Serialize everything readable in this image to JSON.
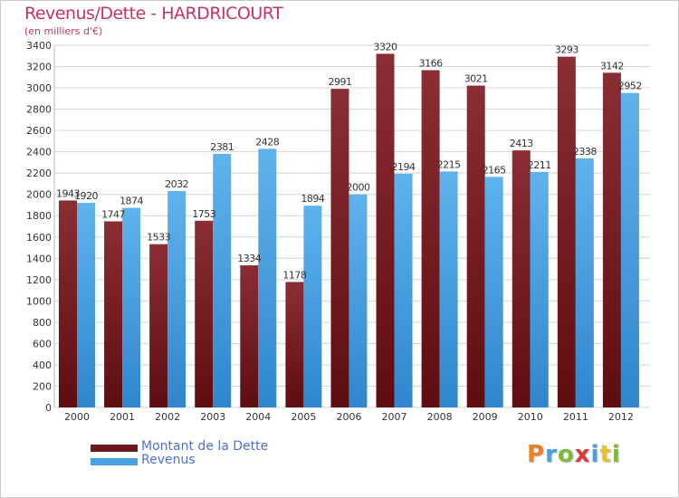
{
  "header": {
    "title": "Revenus/Dette - HARDRICOURT",
    "subtitle": "(en milliers d'€)"
  },
  "chart_data": {
    "type": "bar",
    "title": "Revenus/Dette - HARDRICOURT",
    "ylabel": "(en milliers d'€)",
    "xlabel": "",
    "ylim": [
      0,
      3400
    ],
    "yticks": [
      0,
      200,
      400,
      600,
      800,
      1000,
      1200,
      1400,
      1600,
      1800,
      2000,
      2200,
      2400,
      2600,
      2800,
      3000,
      3200,
      3400
    ],
    "grid": true,
    "categories": [
      "2000",
      "2001",
      "2002",
      "2003",
      "2004",
      "2005",
      "2006",
      "2007",
      "2008",
      "2009",
      "2010",
      "2011",
      "2012"
    ],
    "series": [
      {
        "name": "Montant de la Dette",
        "values": [
          1943,
          1747,
          1533,
          1753,
          1334,
          1178,
          2991,
          3320,
          3166,
          3021,
          2413,
          3293,
          3142
        ]
      },
      {
        "name": "Revenus",
        "values": [
          1920,
          1874,
          2032,
          2381,
          2428,
          1894,
          2000,
          2194,
          2215,
          2165,
          2211,
          2338,
          2952
        ]
      }
    ],
    "legend_position": "bottom-left"
  },
  "colors": {
    "dette_top": "#8a2e34",
    "dette_bottom": "#5e0d10",
    "revenus_top": "#5fb3ec",
    "revenus_bottom": "#2f86cd",
    "grid": "#d4d4d4",
    "axis_text": "#333333",
    "title": "#c8316a"
  },
  "legend": {
    "items": [
      {
        "label": "Montant de la Dette",
        "color": "#6b1a1e"
      },
      {
        "label": "Revenus",
        "color": "#4aa1e2"
      }
    ]
  },
  "logo": {
    "letters": [
      "P",
      "r",
      "o",
      "x",
      "i",
      "t",
      "i"
    ],
    "colors": [
      "#e8812a",
      "#4c9fdd",
      "#7cba3d",
      "#d93a3a",
      "#4c9fdd",
      "#e8c12a",
      "#7cba3d"
    ]
  }
}
